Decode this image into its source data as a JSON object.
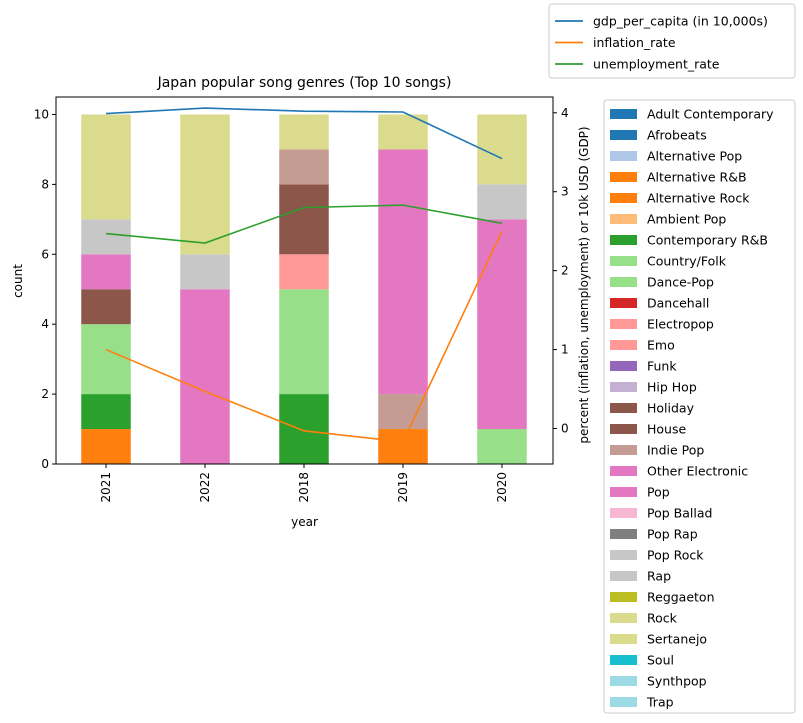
{
  "chart_data": {
    "type": "bar",
    "stacked": true,
    "title": "Japan popular song genres (Top 10 songs)",
    "xlabel": "year",
    "ylabel": "count",
    "y2label": "percent (inflation, unemployment) or 10k USD (GDP)",
    "categories": [
      "2021",
      "2022",
      "2018",
      "2019",
      "2020"
    ],
    "ylim": [
      0,
      10.5
    ],
    "y2lim": [
      -0.45,
      4.2
    ],
    "yticks": [
      "0",
      "2",
      "4",
      "6",
      "8",
      "10"
    ],
    "y2ticks": [
      "0",
      "1",
      "2",
      "3",
      "4"
    ],
    "genres": [
      {
        "name": "Adult Contemporary",
        "color": "#1f77b4",
        "values": [
          0,
          0,
          0,
          0,
          0
        ]
      },
      {
        "name": "Afrobeats",
        "color": "#1f77b4",
        "values": [
          0,
          0,
          0,
          0,
          0
        ]
      },
      {
        "name": "Alternative Pop",
        "color": "#aec7e8",
        "values": [
          0,
          0,
          0,
          0,
          0
        ]
      },
      {
        "name": "Alternative R&B",
        "color": "#ff7f0e",
        "values": [
          0,
          0,
          0,
          1,
          0
        ]
      },
      {
        "name": "Alternative Rock",
        "color": "#ff7f0e",
        "values": [
          1,
          0,
          0,
          0,
          0
        ]
      },
      {
        "name": "Ambient Pop",
        "color": "#ffbb78",
        "values": [
          0,
          0,
          0,
          0,
          0
        ]
      },
      {
        "name": "Contemporary R&B",
        "color": "#2ca02c",
        "values": [
          1,
          0,
          2,
          0,
          0
        ]
      },
      {
        "name": "Country/Folk",
        "color": "#98df8a",
        "values": [
          0,
          0,
          3,
          0,
          1
        ]
      },
      {
        "name": "Dance-Pop",
        "color": "#98df8a",
        "values": [
          2,
          0,
          0,
          0,
          0
        ]
      },
      {
        "name": "Dancehall",
        "color": "#d62728",
        "values": [
          0,
          0,
          0,
          0,
          0
        ]
      },
      {
        "name": "Electropop",
        "color": "#ff9896",
        "values": [
          0,
          0,
          1,
          0,
          0
        ]
      },
      {
        "name": "Emo",
        "color": "#ff9896",
        "values": [
          0,
          0,
          0,
          0,
          0
        ]
      },
      {
        "name": "Funk",
        "color": "#9467bd",
        "values": [
          0,
          0,
          0,
          0,
          0
        ]
      },
      {
        "name": "Hip Hop",
        "color": "#c5b0d5",
        "values": [
          0,
          0,
          0,
          0,
          0
        ]
      },
      {
        "name": "Holiday",
        "color": "#8c564b",
        "values": [
          1,
          0,
          0,
          0,
          0
        ]
      },
      {
        "name": "House",
        "color": "#8c564b",
        "values": [
          0,
          0,
          2,
          0,
          0
        ]
      },
      {
        "name": "Indie Pop",
        "color": "#c49c94",
        "values": [
          0,
          0,
          1,
          1,
          0
        ]
      },
      {
        "name": "Other Electronic",
        "color": "#e377c2",
        "values": [
          1,
          0,
          0,
          0,
          0
        ]
      },
      {
        "name": "Pop",
        "color": "#e377c2",
        "values": [
          0,
          5,
          0,
          7,
          6
        ]
      },
      {
        "name": "Pop Ballad",
        "color": "#f7b6d2",
        "values": [
          0,
          0,
          0,
          0,
          0
        ]
      },
      {
        "name": "Pop Rap",
        "color": "#7f7f7f",
        "values": [
          0,
          0,
          0,
          0,
          0
        ]
      },
      {
        "name": "Pop Rock",
        "color": "#c7c7c7",
        "values": [
          1,
          1,
          0,
          0,
          0
        ]
      },
      {
        "name": "Rap",
        "color": "#c7c7c7",
        "values": [
          0,
          0,
          0,
          0,
          1
        ]
      },
      {
        "name": "Reggaeton",
        "color": "#bcbd22",
        "values": [
          0,
          0,
          0,
          0,
          0
        ]
      },
      {
        "name": "Rock",
        "color": "#dbdb8d",
        "values": [
          3,
          4,
          1,
          1,
          0
        ]
      },
      {
        "name": "Sertanejo",
        "color": "#dbdb8d",
        "values": [
          0,
          0,
          0,
          0,
          2
        ]
      },
      {
        "name": "Soul",
        "color": "#17becf",
        "values": [
          0,
          0,
          0,
          0,
          0
        ]
      },
      {
        "name": "Synthpop",
        "color": "#9edae5",
        "values": [
          0,
          0,
          0,
          0,
          0
        ]
      },
      {
        "name": "Trap",
        "color": "#9edae5",
        "values": [
          0,
          0,
          0,
          0,
          0
        ]
      }
    ],
    "lines": [
      {
        "name": "gdp_per_capita (in 10,000s)",
        "color": "#1f77b4",
        "values": [
          3.99,
          4.06,
          4.02,
          4.01,
          3.42
        ]
      },
      {
        "name": "inflation_rate",
        "color": "#ff7f0e",
        "values": [
          1.0,
          0.47,
          -0.03,
          -0.17,
          2.5
        ]
      },
      {
        "name": "unemployment_rate",
        "color": "#2ca02c",
        "values": [
          2.47,
          2.35,
          2.8,
          2.83,
          2.6
        ]
      }
    ]
  }
}
